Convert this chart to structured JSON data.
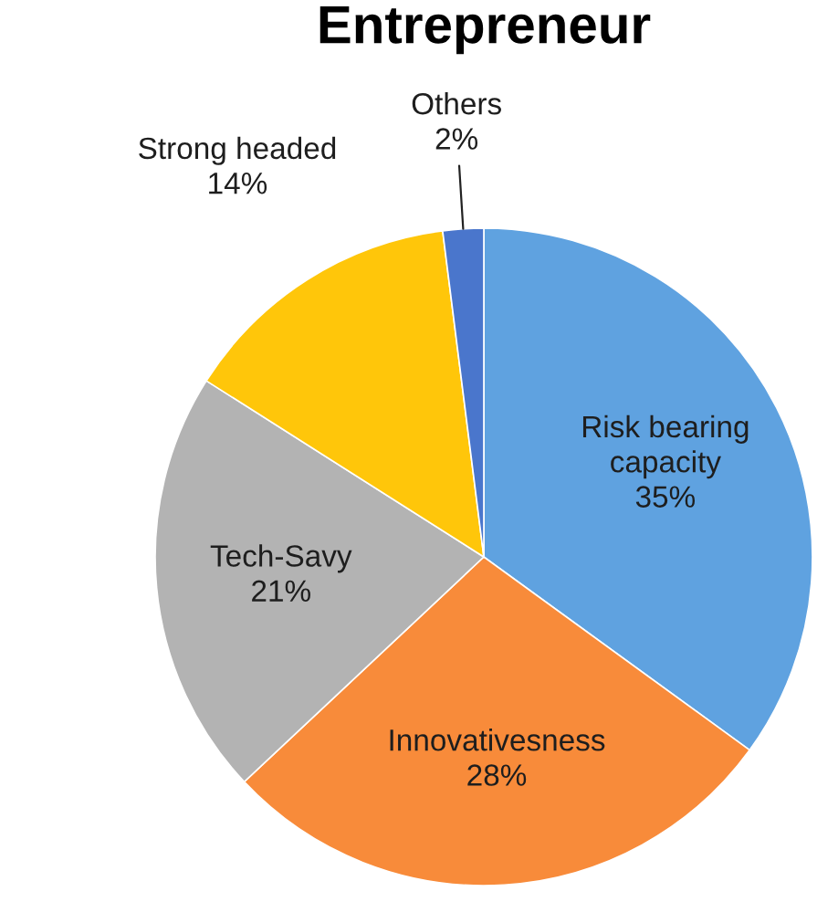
{
  "chart_data": {
    "type": "pie",
    "title": "Entrepreneur",
    "categories": [
      "Risk bearing\ncapacity",
      "Innovativesness",
      "Tech-Savy",
      "Strong headed",
      "Others"
    ],
    "values": [
      35,
      28,
      21,
      14,
      2
    ],
    "value_labels": [
      "35%",
      "28%",
      "21%",
      "14%",
      "2%"
    ],
    "colors": [
      "#5fa2e0",
      "#f88b3a",
      "#b3b3b3",
      "#ffc60a",
      "#4a76cc"
    ]
  }
}
